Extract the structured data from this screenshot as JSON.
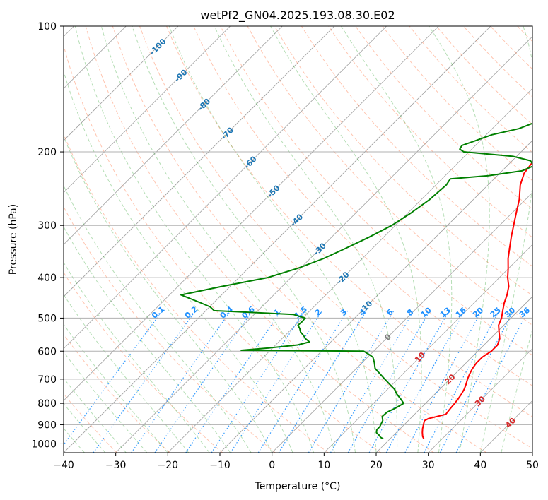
{
  "chart_data": {
    "type": "line",
    "subtype": "skew-t log-p diagram",
    "title": "wetPf2_GN04.2025.193.08.30.E02",
    "xlabel": "Temperature (°C)",
    "ylabel": "Pressure (hPa)",
    "xlim": [
      -40,
      50
    ],
    "ylim": [
      1050,
      100
    ],
    "yscale": "log",
    "x_ticks": [
      "−40",
      "−30",
      "−20",
      "−10",
      "0",
      "10",
      "20",
      "30",
      "40",
      "50"
    ],
    "y_ticks": [
      "100",
      "200",
      "300",
      "400",
      "500",
      "600",
      "700",
      "800",
      "900",
      "1000"
    ],
    "grid": true,
    "colors": {
      "temperature": "#ff0000",
      "dewpoint": "#008000",
      "isotherm": "#808080",
      "dry_adiabat": "#ff7f50",
      "moist_adiabat": "#2ca02c",
      "mixing_ratio": "#1e90ff",
      "isotherm_label": "#1f77b4",
      "zero_isotherm_label": "#808080",
      "warm_isotherm_label": "#d62728"
    },
    "isotherm_labels_cold": [
      "-100",
      "-90",
      "-80",
      "-70",
      "-60",
      "-50",
      "-40",
      "-30",
      "-20",
      "-10"
    ],
    "isotherm_label_zero": "0",
    "isotherm_labels_warm": [
      "10",
      "20",
      "30",
      "40"
    ],
    "mixing_ratio_labels": [
      "0.1",
      "0.2",
      "0.4",
      "0.6",
      "1",
      "1.5",
      "2",
      "3",
      "4",
      "6",
      "8",
      "10",
      "13",
      "16",
      "20",
      "25",
      "30",
      "36"
    ],
    "series": [
      {
        "role": "temperature",
        "p": [
          973,
          960,
          940,
          920,
          900,
          880,
          870,
          850,
          830,
          800,
          780,
          760,
          740,
          720,
          700,
          680,
          660,
          640,
          620,
          600,
          580,
          560,
          540,
          520,
          500,
          480,
          460,
          440,
          420,
          400,
          380,
          360,
          340,
          320,
          300,
          280,
          260,
          240,
          225,
          210,
          200,
          190,
          180,
          170,
          160,
          150,
          140,
          130,
          120,
          115,
          110,
          105,
          100
        ],
        "t": [
          26.5,
          25.8,
          25.0,
          24.3,
          23.7,
          23.1,
          23.5,
          26.0,
          25.8,
          25.6,
          25.4,
          25.1,
          24.7,
          24.1,
          23.4,
          22.8,
          22.3,
          22.0,
          22.0,
          22.6,
          22.6,
          21.8,
          20.4,
          19.0,
          18.2,
          17.0,
          15.8,
          14.8,
          13.5,
          11.6,
          9.9,
          8.0,
          6.3,
          4.5,
          2.7,
          0.8,
          -1.2,
          -3.8,
          -5.3,
          -5.9,
          -5.5,
          -5.3,
          -6.6,
          -8.4,
          -10.0,
          -11.7,
          -13.5,
          -15.5,
          -17.6,
          -18.4,
          -18.8,
          -19.0,
          -19.5
        ]
      },
      {
        "role": "dewpoint",
        "p": [
          973,
          965,
          955,
          940,
          925,
          910,
          895,
          880,
          860,
          840,
          820,
          800,
          780,
          760,
          740,
          700,
          660,
          640,
          620,
          610,
          600,
          597,
          590,
          580,
          570,
          560,
          550,
          540,
          530,
          520,
          510,
          500,
          490,
          480,
          470,
          460,
          440,
          420,
          400,
          380,
          360,
          340,
          320,
          300,
          280,
          260,
          240,
          232,
          228,
          222,
          216,
          210,
          205,
          200,
          197,
          193,
          188,
          182,
          176,
          170,
          164,
          158,
          150,
          140,
          130,
          120,
          110,
          100
        ],
        "td": [
          18.7,
          17.9,
          17.3,
          16.2,
          15.7,
          15.7,
          15.4,
          15.1,
          14.2,
          14.3,
          15.2,
          15.8,
          14.3,
          12.7,
          11.3,
          7.5,
          3.6,
          2.4,
          1.0,
          -0.4,
          -1.9,
          -25.6,
          -20.9,
          -15.8,
          -14.1,
          -15.5,
          -16.5,
          -17.7,
          -18.5,
          -19.5,
          -19.4,
          -19.5,
          -22.5,
          -38.4,
          -39.9,
          -42.4,
          -47.8,
          -41.6,
          -34.5,
          -30.5,
          -27.4,
          -25.1,
          -22.8,
          -20.7,
          -19.4,
          -18.4,
          -18.0,
          -18.4,
          -11.7,
          -6.2,
          -4.9,
          -6.5,
          -10.7,
          -21.0,
          -22.3,
          -22.6,
          -20.9,
          -18.9,
          -14.9,
          -13.0,
          -11.8,
          -9.5,
          -7.5,
          -6.1,
          -4.6,
          -3.1,
          -0.8,
          1.4
        ]
      }
    ]
  }
}
